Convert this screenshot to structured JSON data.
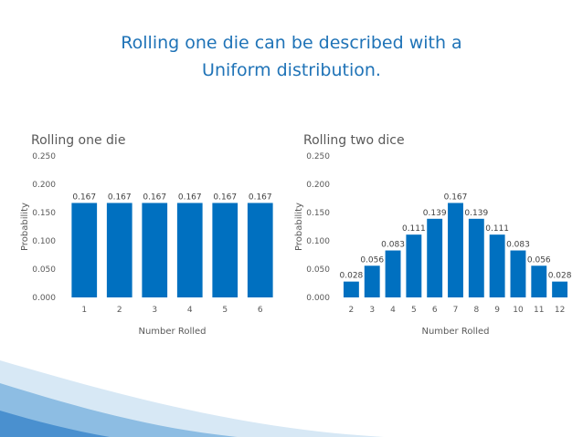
{
  "slide": {
    "title_line1": "Rolling one die can be described with a",
    "title_line2": "Uniform distribution."
  },
  "colors": {
    "bar": "#0070c0",
    "title": "#1f73b7",
    "decor_light": "#cfe3f3",
    "decor_mid": "#7fb2de"
  },
  "chart_data": [
    {
      "type": "bar",
      "title": "Rolling one die",
      "xlabel": "Number Rolled",
      "ylabel": "Probability",
      "ylim": [
        0,
        0.25
      ],
      "ytick_labels": [
        "0.000",
        "0.050",
        "0.100",
        "0.150",
        "0.200",
        "0.250"
      ],
      "categories": [
        "1",
        "2",
        "3",
        "4",
        "5",
        "6"
      ],
      "values": [
        0.167,
        0.167,
        0.167,
        0.167,
        0.167,
        0.167
      ],
      "data_labels": [
        "0.167",
        "0.167",
        "0.167",
        "0.167",
        "0.167",
        "0.167"
      ],
      "grid": false
    },
    {
      "type": "bar",
      "title": "Rolling two dice",
      "xlabel": "Number Rolled",
      "ylabel": "Probability",
      "ylim": [
        0,
        0.25
      ],
      "ytick_labels": [
        "0.000",
        "0.050",
        "0.100",
        "0.150",
        "0.200",
        "0.250"
      ],
      "categories": [
        "2",
        "3",
        "4",
        "5",
        "6",
        "7",
        "8",
        "9",
        "10",
        "11",
        "12"
      ],
      "values": [
        0.028,
        0.056,
        0.083,
        0.111,
        0.139,
        0.167,
        0.139,
        0.111,
        0.083,
        0.056,
        0.028
      ],
      "data_labels": [
        "0.028",
        "0.056",
        "0.083",
        "0.111",
        "0.139",
        "0.167",
        "0.139",
        "0.111",
        "0.083",
        "0.056",
        "0.028"
      ],
      "grid": false
    }
  ]
}
